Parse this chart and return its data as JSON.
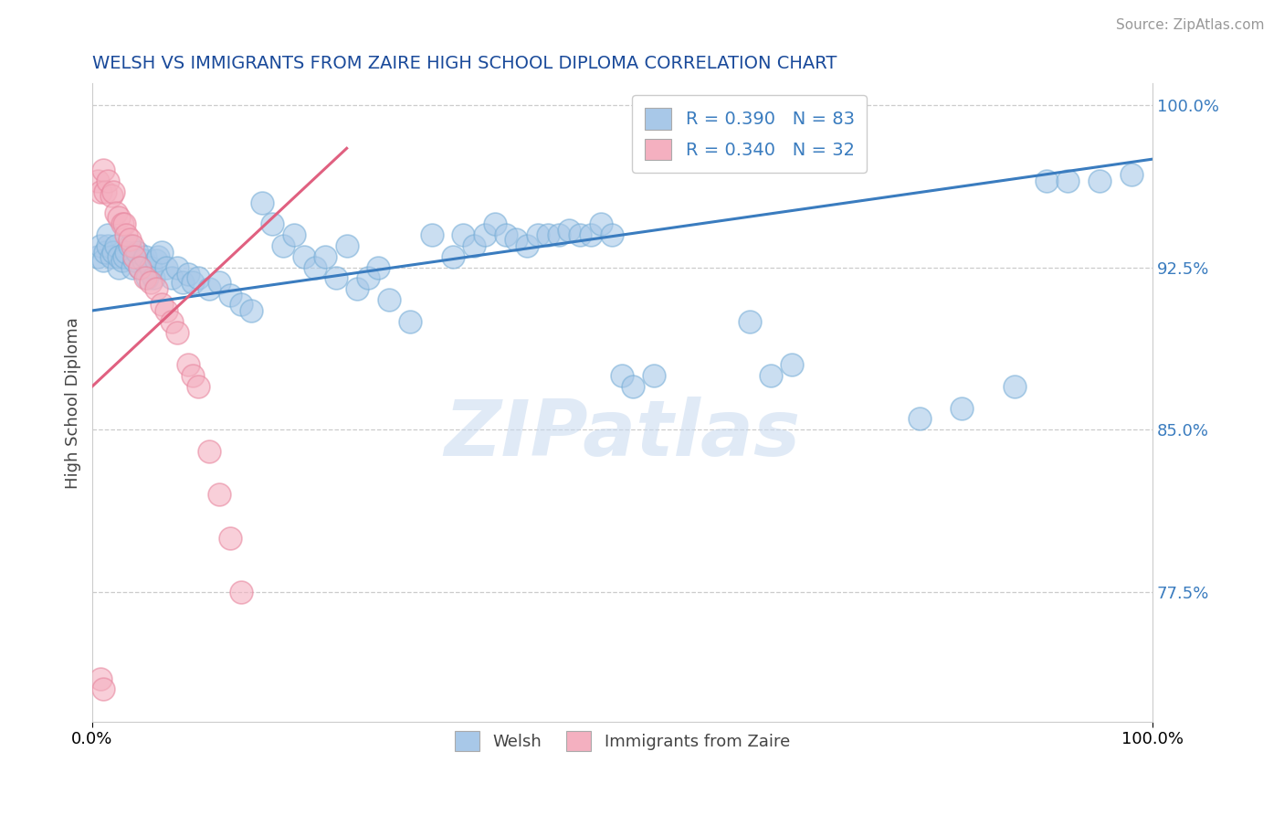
{
  "title": "WELSH VS IMMIGRANTS FROM ZAIRE HIGH SCHOOL DIPLOMA CORRELATION CHART",
  "source": "Source: ZipAtlas.com",
  "ylabel": "High School Diploma",
  "watermark": "ZIPatlas",
  "blue_R": 0.39,
  "blue_N": 83,
  "pink_R": 0.34,
  "pink_N": 32,
  "blue_color": "#a8c8e8",
  "pink_color": "#f4b0c0",
  "blue_edge_color": "#7ab0d8",
  "pink_edge_color": "#e888a0",
  "blue_line_color": "#3a7cbf",
  "pink_line_color": "#e06080",
  "title_color": "#1a4a9a",
  "legend_label_blue": "Welsh",
  "legend_label_pink": "Immigrants from Zaire",
  "xmin": 0.0,
  "xmax": 1.0,
  "ymin": 0.715,
  "ymax": 1.01,
  "yticks": [
    0.775,
    0.85,
    0.925,
    1.0
  ],
  "ytick_labels": [
    "77.5%",
    "85.0%",
    "92.5%",
    "100.0%"
  ],
  "blue_line_x": [
    0.0,
    1.0
  ],
  "blue_line_y": [
    0.905,
    0.975
  ],
  "pink_line_x": [
    0.0,
    0.24
  ],
  "pink_line_y": [
    0.87,
    0.98
  ],
  "blue_x": [
    0.005,
    0.008,
    0.01,
    0.012,
    0.015,
    0.015,
    0.018,
    0.02,
    0.022,
    0.025,
    0.025,
    0.028,
    0.03,
    0.032,
    0.035,
    0.038,
    0.04,
    0.042,
    0.045,
    0.048,
    0.05,
    0.052,
    0.055,
    0.058,
    0.06,
    0.062,
    0.065,
    0.07,
    0.075,
    0.08,
    0.085,
    0.09,
    0.095,
    0.1,
    0.11,
    0.12,
    0.13,
    0.14,
    0.15,
    0.16,
    0.17,
    0.18,
    0.19,
    0.2,
    0.21,
    0.22,
    0.23,
    0.24,
    0.25,
    0.26,
    0.27,
    0.28,
    0.3,
    0.32,
    0.34,
    0.35,
    0.36,
    0.37,
    0.38,
    0.39,
    0.4,
    0.41,
    0.42,
    0.43,
    0.44,
    0.45,
    0.46,
    0.47,
    0.48,
    0.49,
    0.5,
    0.51,
    0.53,
    0.62,
    0.64,
    0.66,
    0.78,
    0.82,
    0.87,
    0.9,
    0.92,
    0.95,
    0.98
  ],
  "blue_y": [
    0.93,
    0.935,
    0.928,
    0.932,
    0.935,
    0.94,
    0.93,
    0.932,
    0.935,
    0.925,
    0.93,
    0.928,
    0.93,
    0.932,
    0.935,
    0.925,
    0.928,
    0.932,
    0.925,
    0.928,
    0.93,
    0.92,
    0.925,
    0.92,
    0.928,
    0.93,
    0.932,
    0.925,
    0.92,
    0.925,
    0.918,
    0.922,
    0.918,
    0.92,
    0.915,
    0.918,
    0.912,
    0.908,
    0.905,
    0.955,
    0.945,
    0.935,
    0.94,
    0.93,
    0.925,
    0.93,
    0.92,
    0.935,
    0.915,
    0.92,
    0.925,
    0.91,
    0.9,
    0.94,
    0.93,
    0.94,
    0.935,
    0.94,
    0.945,
    0.94,
    0.938,
    0.935,
    0.94,
    0.94,
    0.94,
    0.942,
    0.94,
    0.94,
    0.945,
    0.94,
    0.875,
    0.87,
    0.875,
    0.9,
    0.875,
    0.88,
    0.855,
    0.86,
    0.87,
    0.965,
    0.965,
    0.965,
    0.968
  ],
  "pink_x": [
    0.005,
    0.008,
    0.01,
    0.012,
    0.015,
    0.018,
    0.02,
    0.022,
    0.025,
    0.028,
    0.03,
    0.032,
    0.035,
    0.038,
    0.04,
    0.045,
    0.05,
    0.055,
    0.06,
    0.065,
    0.07,
    0.075,
    0.08,
    0.09,
    0.095,
    0.1,
    0.11,
    0.12,
    0.13,
    0.14,
    0.008,
    0.01
  ],
  "pink_y": [
    0.965,
    0.96,
    0.97,
    0.96,
    0.965,
    0.958,
    0.96,
    0.95,
    0.948,
    0.945,
    0.945,
    0.94,
    0.938,
    0.935,
    0.93,
    0.925,
    0.92,
    0.918,
    0.915,
    0.908,
    0.905,
    0.9,
    0.895,
    0.88,
    0.875,
    0.87,
    0.84,
    0.82,
    0.8,
    0.775,
    0.735,
    0.73
  ]
}
